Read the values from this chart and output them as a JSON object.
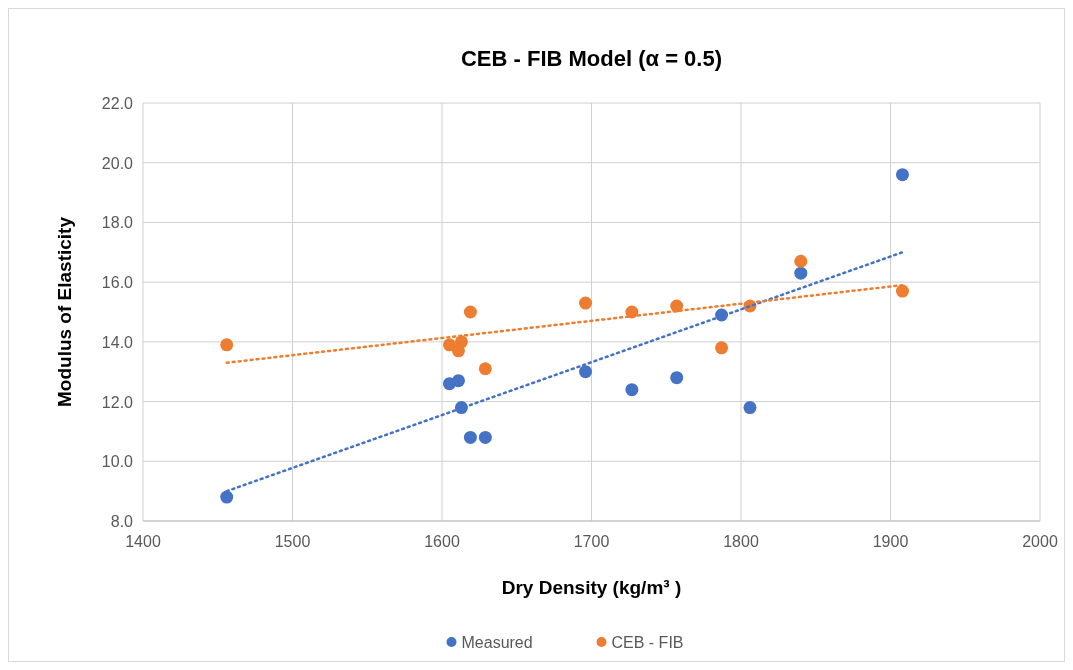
{
  "chart_data": {
    "type": "scatter",
    "title": "CEB - FIB Model (α = 0.5)",
    "xlabel": "Dry Density (kg/m³ )",
    "ylabel": "Modulus of Elasticity",
    "xlim": [
      1400,
      2000
    ],
    "xticks": [
      1400,
      1500,
      1600,
      1700,
      1800,
      1900,
      2000
    ],
    "ylim": [
      8,
      22
    ],
    "yticks": [
      {
        "value": 8,
        "label": "8.0"
      },
      {
        "value": 10,
        "label": "10.0"
      },
      {
        "value": 12,
        "label": "12.0"
      },
      {
        "value": 14,
        "label": "14.0"
      },
      {
        "value": 16,
        "label": "16.0"
      },
      {
        "value": 18,
        "label": "18.0"
      },
      {
        "value": 20,
        "label": "20.0"
      },
      {
        "value": 22,
        "label": "22.0"
      }
    ],
    "grid": true,
    "legend": "bottom",
    "marker": "circle",
    "series": [
      {
        "name": "Measured",
        "color": "#4472c4",
        "x": [
          1456,
          1605,
          1611,
          1613,
          1619,
          1629,
          1696,
          1727,
          1757,
          1787,
          1806,
          1840,
          1908
        ],
        "values": [
          8.8,
          12.6,
          12.7,
          11.8,
          10.8,
          10.8,
          13.0,
          12.4,
          12.8,
          14.9,
          11.8,
          16.3,
          19.6
        ]
      },
      {
        "name": "CEB - FIB",
        "color": "#ed7d31",
        "x": [
          1456,
          1605,
          1611,
          1613,
          1619,
          1629,
          1696,
          1727,
          1757,
          1787,
          1806,
          1840,
          1908
        ],
        "values": [
          13.9,
          13.9,
          13.7,
          14.0,
          15.0,
          13.1,
          15.3,
          15.0,
          15.2,
          13.8,
          15.2,
          16.7,
          15.7
        ]
      },
      {
        "type": "line",
        "color": "#4472c4",
        "line_style": "dotted",
        "marker": "none",
        "x": [
          1456,
          1908
        ],
        "values": [
          9.0,
          17.0
        ]
      },
      {
        "type": "line",
        "color": "#ed7d31",
        "line_style": "dotted",
        "marker": "none",
        "x": [
          1456,
          1908
        ],
        "values": [
          13.3,
          15.9
        ]
      }
    ]
  }
}
